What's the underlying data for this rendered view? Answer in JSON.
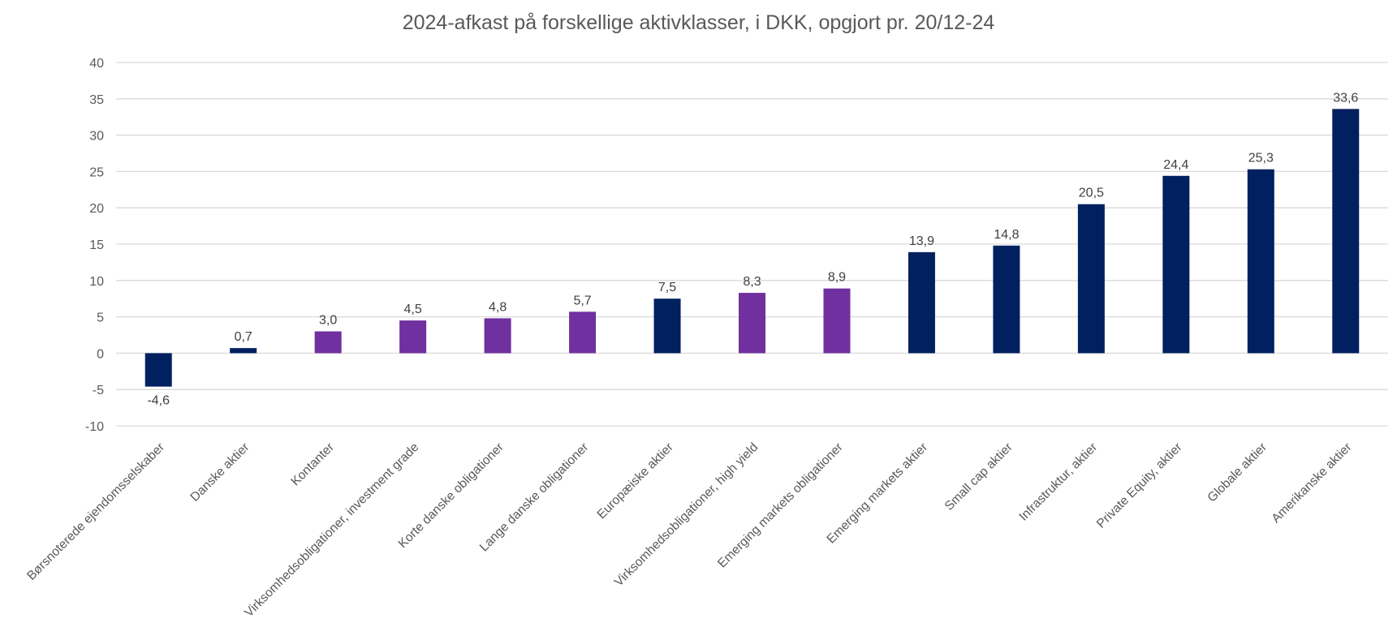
{
  "chart_data": {
    "type": "bar",
    "title": "2024-afkast på forskellige aktivklasser, i DKK, opgjort pr. 20/12-24",
    "xlabel": "",
    "ylabel": "",
    "ylim": [
      -10,
      40
    ],
    "yticks": [
      40,
      35,
      30,
      25,
      20,
      15,
      10,
      5,
      0,
      -5,
      -10
    ],
    "grid": true,
    "legend": "none",
    "colors": {
      "equity": "#002060",
      "bond": "#7030A0",
      "grid": "#d9d9d9"
    },
    "categories": [
      "Børsnoterede ejendomsselskaber",
      "Danske aktier",
      "Kontanter",
      "Virksomhedsobligationer, investment grade",
      "Korte danske obligationer",
      "Lange danske obligationer",
      "Europæiske aktier",
      "Virksomhedsobligationer, high yield",
      "Emerging markets obligationer",
      "Emerging markets aktier",
      "Small cap aktier",
      "Infrastruktur, aktier",
      "Private Equity, aktier",
      "Globale aktier",
      "Amerikanske aktier"
    ],
    "values": [
      -4.6,
      0.7,
      3.0,
      4.5,
      4.8,
      5.7,
      7.5,
      8.3,
      8.9,
      13.9,
      14.8,
      20.5,
      24.4,
      25.3,
      33.6
    ],
    "value_labels": [
      "-4,6",
      "0,7",
      "3,0",
      "4,5",
      "4,8",
      "5,7",
      "7,5",
      "8,3",
      "8,9",
      "13,9",
      "14,8",
      "20,5",
      "24,4",
      "25,3",
      "33,6"
    ],
    "bar_colors": [
      "#002060",
      "#002060",
      "#7030A0",
      "#7030A0",
      "#7030A0",
      "#7030A0",
      "#002060",
      "#7030A0",
      "#7030A0",
      "#002060",
      "#002060",
      "#002060",
      "#002060",
      "#002060",
      "#002060"
    ]
  }
}
